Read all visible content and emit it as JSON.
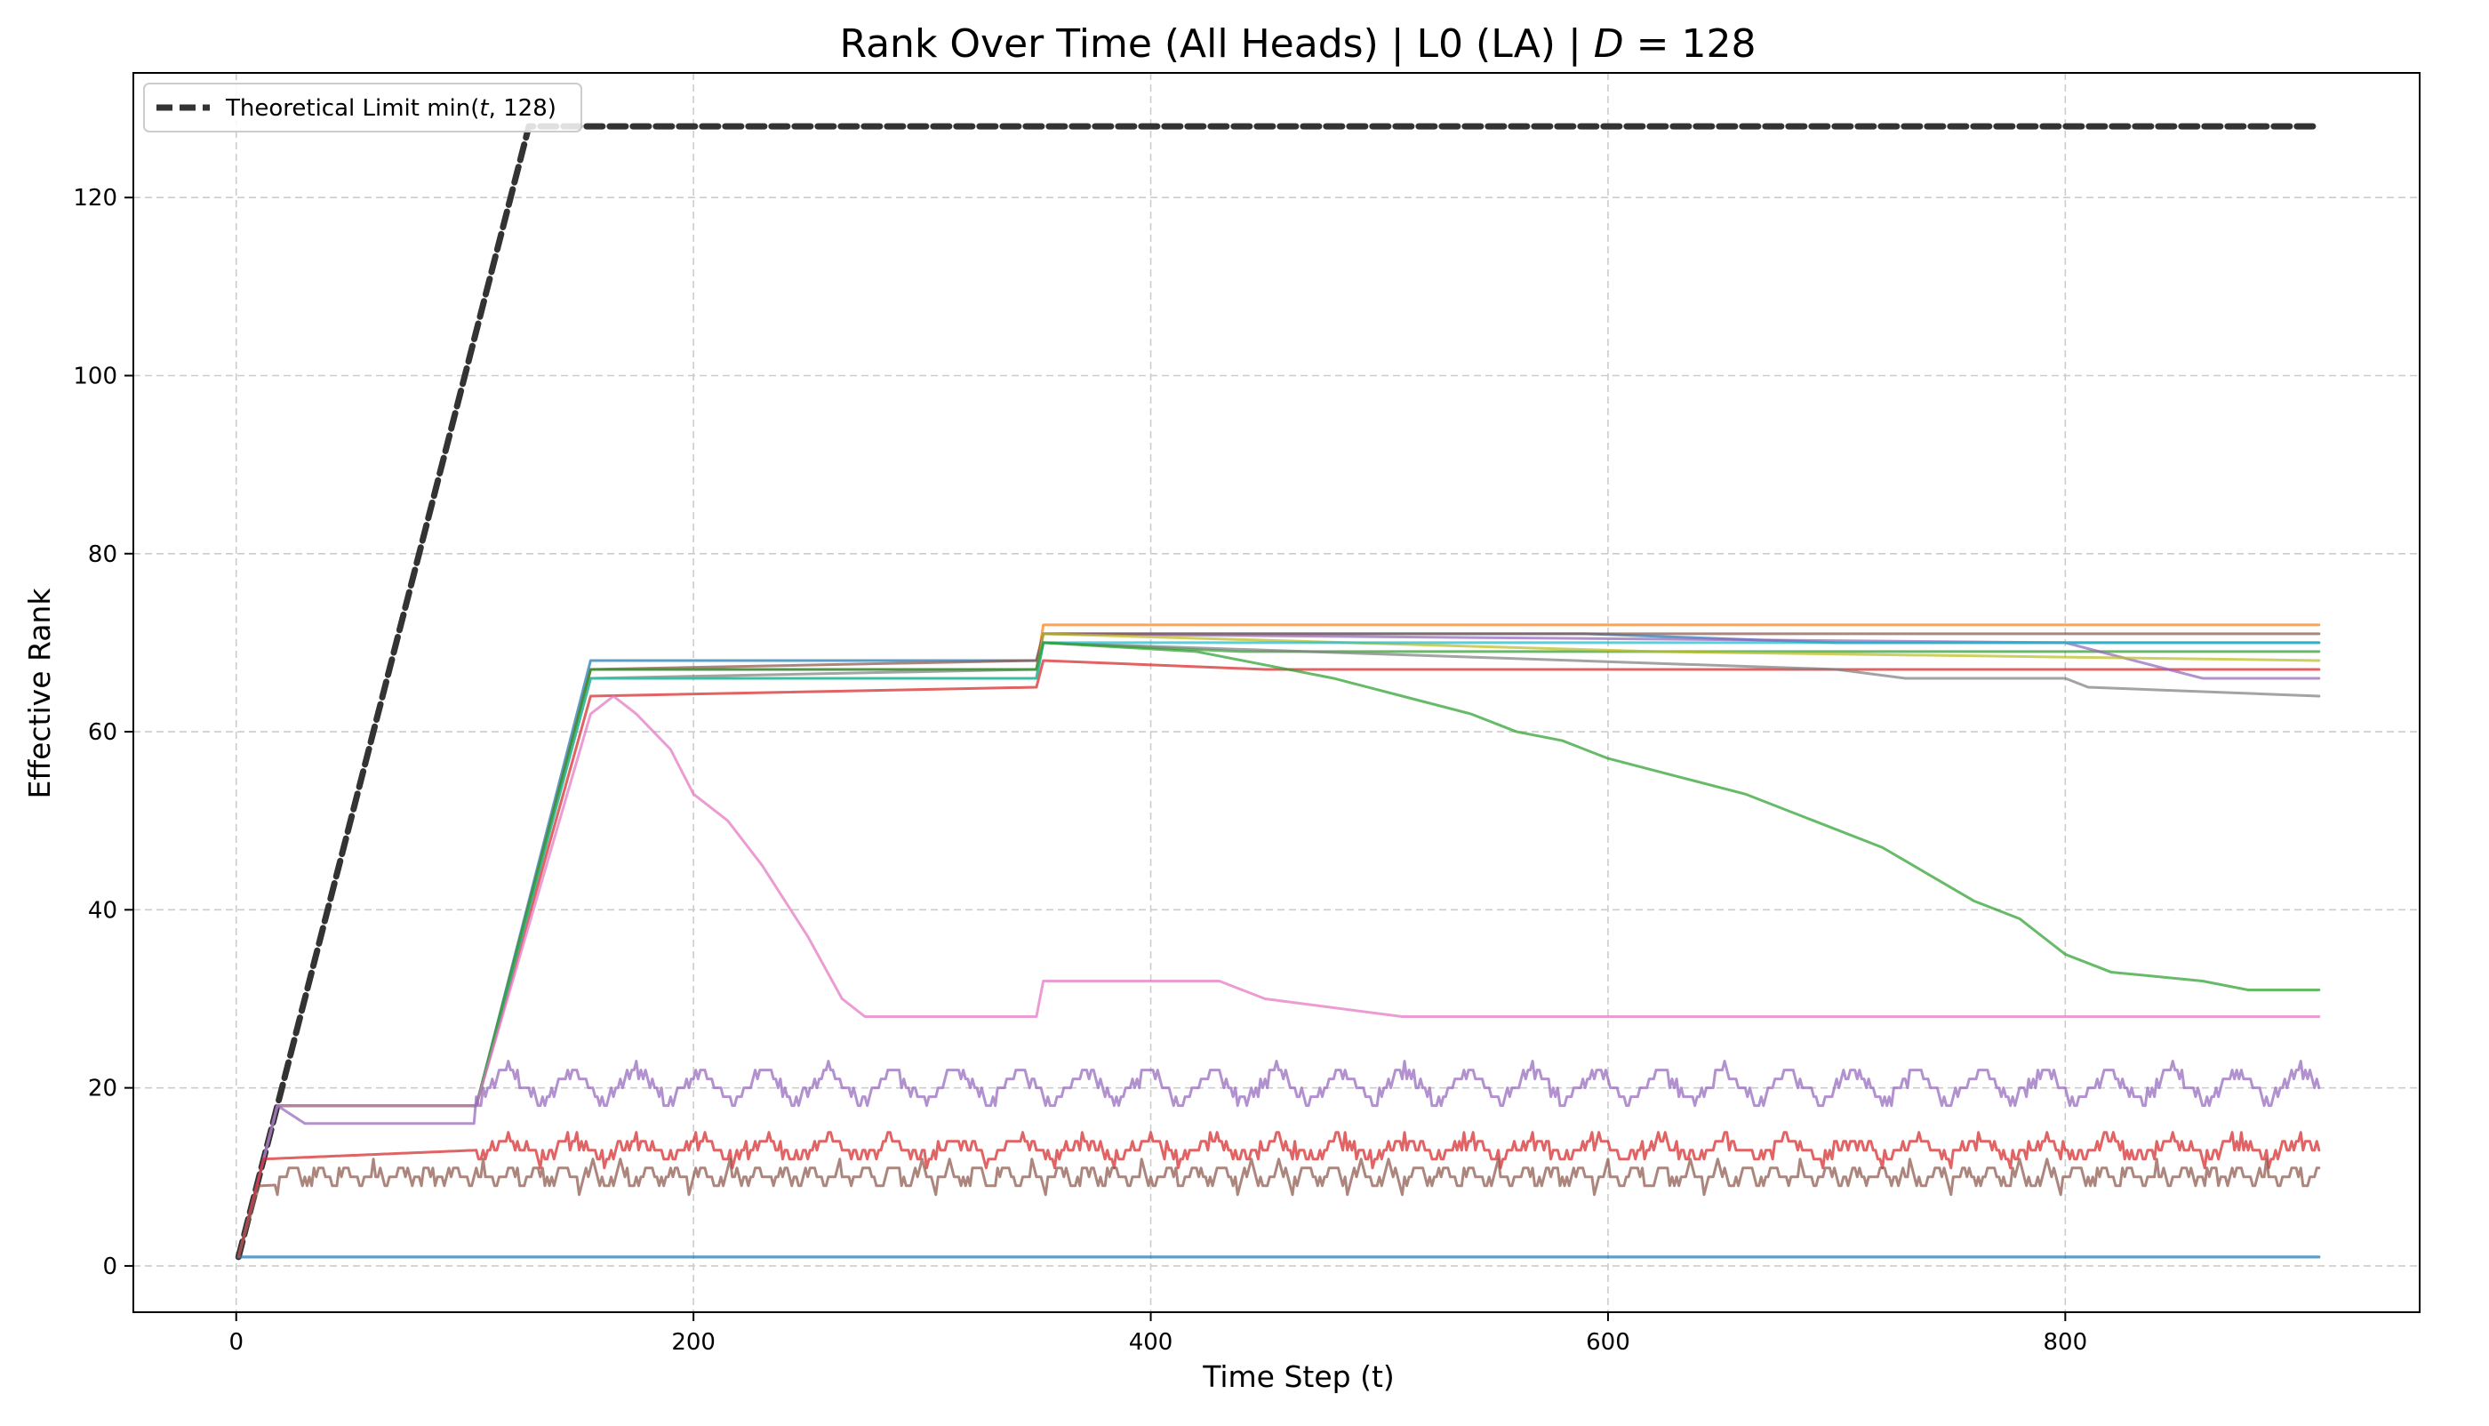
{
  "chart_data": {
    "type": "line",
    "title": "Rank Over Time (All Heads) | L0 (LA) | D = 128",
    "title_parts": {
      "prefix": "Rank Over Time (All Heads) | L0 (LA) | ",
      "var": "D",
      "suffix": " = 128"
    },
    "xlabel": "Time Step (t)",
    "ylabel": "Effective Rank",
    "xlim": [
      -45,
      955
    ],
    "ylim": [
      -5.2,
      134
    ],
    "xticks": [
      0,
      200,
      400,
      600,
      800
    ],
    "yticks": [
      0,
      20,
      40,
      60,
      80,
      100,
      120
    ],
    "grid": true,
    "legend": {
      "placement": "top-left",
      "entries": [
        {
          "label_prefix": "Theoretical Limit min(",
          "label_var": "t",
          "label_suffix": ", 128)",
          "style": "dashed",
          "color": "#333333"
        }
      ]
    },
    "series": [
      {
        "color": "#333333",
        "style": "dashed",
        "width": 7,
        "points": [
          [
            1,
            1
          ],
          [
            128,
            128
          ],
          [
            911,
            128
          ]
        ]
      },
      {
        "color": "#1f77b4",
        "width": 3.2,
        "points": [
          [
            1,
            1
          ],
          [
            3,
            1
          ],
          [
            911,
            1
          ]
        ]
      },
      {
        "color": "#1f77b4",
        "width": 3,
        "points": [
          [
            1,
            1
          ],
          [
            18,
            18
          ],
          [
            105,
            18
          ],
          [
            155,
            68
          ],
          [
            350,
            68
          ],
          [
            353,
            71
          ],
          [
            590,
            71
          ],
          [
            700,
            70
          ],
          [
            911,
            70
          ]
        ]
      },
      {
        "color": "#ff7f0e",
        "width": 3,
        "points": [
          [
            1,
            1
          ],
          [
            18,
            18
          ],
          [
            105,
            18
          ],
          [
            155,
            67
          ],
          [
            350,
            67
          ],
          [
            353,
            72
          ],
          [
            911,
            72
          ]
        ]
      },
      {
        "color": "#2ca02c",
        "width": 3,
        "points": [
          [
            1,
            1
          ],
          [
            18,
            18
          ],
          [
            105,
            18
          ],
          [
            155,
            66
          ],
          [
            350,
            66
          ],
          [
            353,
            70
          ],
          [
            440,
            69
          ],
          [
            911,
            69
          ]
        ]
      },
      {
        "color": "#d62728",
        "width": 3,
        "points": [
          [
            1,
            1
          ],
          [
            18,
            18
          ],
          [
            105,
            18
          ],
          [
            155,
            64
          ],
          [
            350,
            65
          ],
          [
            353,
            68
          ],
          [
            450,
            67
          ],
          [
            911,
            67
          ]
        ]
      },
      {
        "color": "#9467bd",
        "width": 3,
        "points": [
          [
            1,
            1
          ],
          [
            18,
            18
          ],
          [
            105,
            18
          ],
          [
            155,
            67
          ],
          [
            350,
            67
          ],
          [
            353,
            71
          ],
          [
            800,
            70
          ],
          [
            860,
            66
          ],
          [
            911,
            66
          ]
        ]
      },
      {
        "color": "#8c564b",
        "width": 3,
        "points": [
          [
            1,
            1
          ],
          [
            18,
            18
          ],
          [
            105,
            18
          ],
          [
            155,
            67
          ],
          [
            350,
            68
          ],
          [
            353,
            71
          ],
          [
            911,
            71
          ]
        ]
      },
      {
        "color": "#7f7f7f",
        "width": 3,
        "points": [
          [
            1,
            1
          ],
          [
            18,
            18
          ],
          [
            105,
            18
          ],
          [
            155,
            66
          ],
          [
            350,
            67
          ],
          [
            353,
            70
          ],
          [
            700,
            67
          ],
          [
            730,
            66
          ],
          [
            800,
            66
          ],
          [
            810,
            65
          ],
          [
            911,
            64
          ]
        ]
      },
      {
        "color": "#bcbd22",
        "width": 3,
        "points": [
          [
            1,
            1
          ],
          [
            18,
            18
          ],
          [
            105,
            18
          ],
          [
            155,
            66
          ],
          [
            350,
            66
          ],
          [
            353,
            71
          ],
          [
            620,
            69
          ],
          [
            911,
            68
          ]
        ]
      },
      {
        "color": "#17becf",
        "width": 3,
        "points": [
          [
            1,
            1
          ],
          [
            18,
            18
          ],
          [
            105,
            18
          ],
          [
            155,
            66
          ],
          [
            350,
            66
          ],
          [
            353,
            70
          ],
          [
            911,
            70
          ]
        ]
      },
      {
        "color": "#2ca02c",
        "width": 3,
        "points": [
          [
            1,
            1
          ],
          [
            18,
            18
          ],
          [
            105,
            18
          ],
          [
            155,
            67
          ],
          [
            350,
            67
          ],
          [
            353,
            70
          ],
          [
            420,
            69
          ],
          [
            440,
            68
          ],
          [
            460,
            67
          ],
          [
            480,
            66
          ],
          [
            510,
            64
          ],
          [
            540,
            62
          ],
          [
            560,
            60
          ],
          [
            580,
            59
          ],
          [
            600,
            57
          ],
          [
            630,
            55
          ],
          [
            660,
            53
          ],
          [
            690,
            50
          ],
          [
            720,
            47
          ],
          [
            740,
            44
          ],
          [
            760,
            41
          ],
          [
            780,
            39
          ],
          [
            800,
            35
          ],
          [
            820,
            33
          ],
          [
            860,
            32
          ],
          [
            880,
            31
          ],
          [
            911,
            31
          ]
        ]
      },
      {
        "color": "#e377c2",
        "width": 3,
        "points": [
          [
            1,
            1
          ],
          [
            18,
            18
          ],
          [
            105,
            18
          ],
          [
            155,
            62
          ],
          [
            165,
            64
          ],
          [
            175,
            62
          ],
          [
            190,
            58
          ],
          [
            200,
            53
          ],
          [
            215,
            50
          ],
          [
            230,
            45
          ],
          [
            250,
            37
          ],
          [
            265,
            30
          ],
          [
            275,
            28
          ],
          [
            350,
            28
          ],
          [
            353,
            32
          ],
          [
            430,
            32
          ],
          [
            450,
            30
          ],
          [
            480,
            29
          ],
          [
            510,
            28
          ],
          [
            911,
            28
          ]
        ]
      },
      {
        "color": "#9467bd",
        "width": 3,
        "osc": {
          "start": 105,
          "amp": 3,
          "period": 28,
          "base": 20
        },
        "points": [
          [
            1,
            1
          ],
          [
            18,
            18
          ],
          [
            30,
            16
          ],
          [
            105,
            16
          ],
          [
            125,
            21
          ],
          [
            911,
            20
          ]
        ]
      },
      {
        "color": "#d62728",
        "width": 3,
        "osc": {
          "start": 105,
          "amp": 1.8,
          "period": 28,
          "base": 13
        },
        "points": [
          [
            1,
            1
          ],
          [
            12,
            12
          ],
          [
            105,
            13
          ],
          [
            911,
            13
          ]
        ]
      },
      {
        "color": "#8c564b",
        "width": 3,
        "osc": {
          "start": 18,
          "amp": 1.6,
          "period": 12,
          "base": 10
        },
        "points": [
          [
            1,
            1
          ],
          [
            10,
            9
          ],
          [
            105,
            10
          ],
          [
            911,
            10
          ]
        ]
      }
    ]
  }
}
